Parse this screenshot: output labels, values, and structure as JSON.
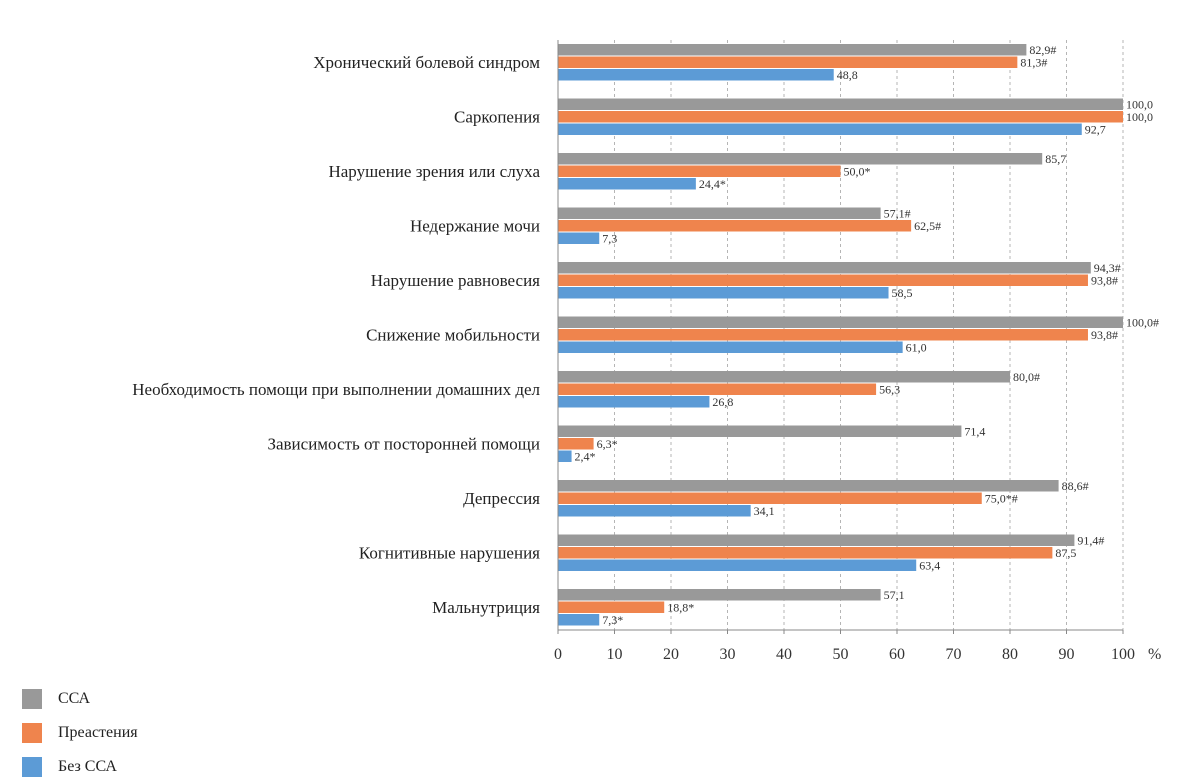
{
  "chart_data": {
    "type": "bar",
    "orientation": "horizontal",
    "categories": [
      "Хронический болевой синдром",
      "Саркопения",
      "Нарушение зрения или слуха",
      "Недержание мочи",
      "Нарушение равновесия",
      "Снижение мобильности",
      "Необходимость помощи при выполнении домашних дел",
      "Зависимость от посторонней помощи",
      "Депрессия",
      "Когнитивные нарушения",
      "Мальнутриция"
    ],
    "series": [
      {
        "name": "ССА",
        "color": "#999999",
        "values": [
          82.9,
          100.0,
          85.7,
          57.1,
          94.3,
          100.0,
          80.0,
          71.4,
          88.6,
          91.4,
          57.1
        ],
        "labels": [
          "82,9#",
          "100,0",
          "85,7",
          "57,1#",
          "94,3#",
          "100,0#",
          "80,0#",
          "71,4",
          "88,6#",
          "91,4#",
          "57,1"
        ]
      },
      {
        "name": "Преастения",
        "color": "#ef844d",
        "values": [
          81.3,
          100.0,
          50.0,
          62.5,
          93.8,
          93.8,
          56.3,
          6.3,
          75.0,
          87.5,
          18.8
        ],
        "labels": [
          "81,3#",
          "100,0",
          "50,0*",
          "62,5#",
          "93,8#",
          "93,8#",
          "56,3",
          "6,3*",
          "75,0*#",
          "87,5",
          "18,8*"
        ]
      },
      {
        "name": "Без ССА",
        "color": "#5c9bd6",
        "values": [
          48.8,
          92.7,
          24.4,
          7.3,
          58.5,
          61.0,
          26.8,
          2.4,
          34.1,
          63.4,
          7.3
        ],
        "labels": [
          "48,8",
          "92,7",
          "24,4*",
          "7,3",
          "58,5",
          "61,0",
          "26,8",
          "2,4*",
          "34,1",
          "63,4",
          "7,3*"
        ]
      }
    ],
    "x_ticks": [
      "0",
      "10",
      "20",
      "30",
      "40",
      "50",
      "60",
      "70",
      "80",
      "90",
      "100"
    ],
    "xunit": "%",
    "xlim": [
      0,
      100
    ],
    "grid": "vertical dashed",
    "legend_position": "bottom-left"
  }
}
